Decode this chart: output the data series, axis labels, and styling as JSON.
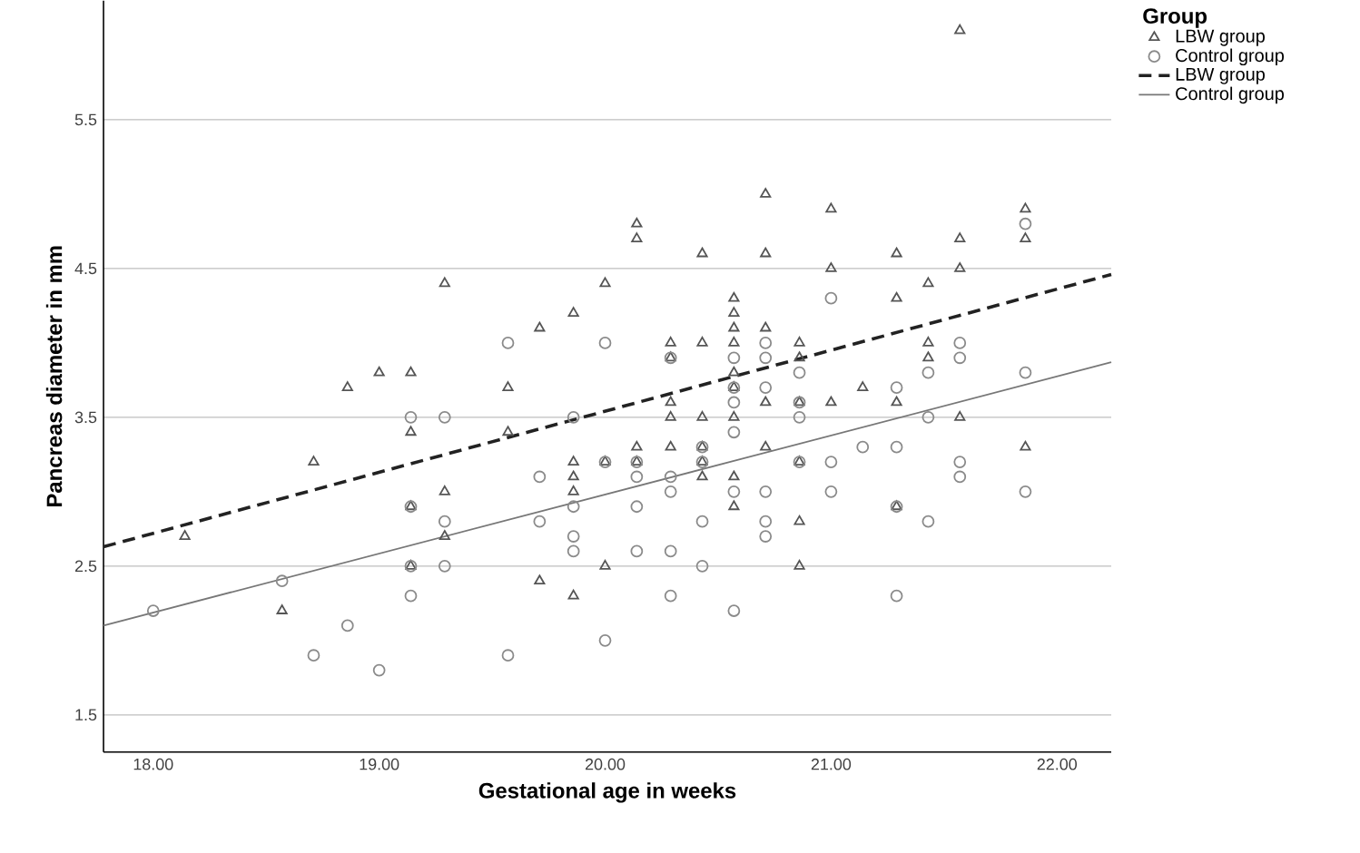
{
  "chart_data": {
    "type": "scatter",
    "xlabel": "Gestational age in weeks",
    "ylabel": "Pancreas diameter in mm",
    "legend_title": "Group",
    "xlim": [
      17.78,
      22.24
    ],
    "ylim": [
      1.25,
      6.3
    ],
    "xticks": [
      {
        "value": 18,
        "label": "18.00"
      },
      {
        "value": 19,
        "label": "19.00"
      },
      {
        "value": 20,
        "label": "20.00"
      },
      {
        "value": 21,
        "label": "21.00"
      },
      {
        "value": 22,
        "label": "22.00"
      }
    ],
    "yticks": [
      1.5,
      2.5,
      3.5,
      4.5,
      5.5
    ],
    "grid": "y",
    "legend": "right",
    "series": [
      {
        "name": "LBW group",
        "marker": "triangle",
        "color": "#555555",
        "x": [
          18.14,
          18.57,
          18.71,
          18.86,
          19.0,
          19.14,
          19.14,
          19.14,
          19.14,
          19.29,
          19.29,
          19.29,
          19.57,
          19.57,
          19.71,
          19.71,
          19.86,
          19.86,
          19.86,
          19.86,
          19.86,
          20.0,
          20.0,
          20.0,
          20.14,
          20.14,
          20.14,
          20.14,
          20.29,
          20.29,
          20.29,
          20.29,
          20.29,
          20.43,
          20.43,
          20.43,
          20.43,
          20.43,
          20.43,
          20.57,
          20.57,
          20.57,
          20.57,
          20.57,
          20.57,
          20.57,
          20.57,
          20.57,
          20.71,
          20.71,
          20.71,
          20.71,
          20.71,
          20.86,
          20.86,
          20.86,
          20.86,
          20.86,
          20.86,
          21.0,
          21.0,
          21.0,
          21.14,
          21.29,
          21.29,
          21.29,
          21.29,
          21.43,
          21.43,
          21.43,
          21.57,
          21.57,
          21.57,
          21.57,
          21.86,
          21.86,
          21.86
        ],
        "values": [
          2.7,
          2.2,
          3.2,
          3.7,
          3.8,
          3.8,
          3.4,
          2.9,
          2.5,
          4.4,
          3.0,
          2.7,
          3.7,
          3.4,
          4.1,
          2.4,
          4.2,
          3.2,
          3.1,
          3.0,
          2.3,
          4.4,
          3.2,
          2.5,
          4.8,
          4.7,
          3.3,
          3.2,
          4.0,
          3.9,
          3.6,
          3.5,
          3.3,
          4.6,
          4.0,
          3.5,
          3.3,
          3.2,
          3.1,
          4.3,
          4.2,
          4.1,
          4.0,
          3.8,
          3.7,
          3.5,
          3.1,
          2.9,
          5.0,
          4.6,
          4.1,
          3.6,
          3.3,
          4.0,
          3.9,
          3.6,
          3.2,
          2.8,
          2.5,
          4.9,
          4.5,
          3.6,
          3.7,
          4.6,
          4.3,
          3.6,
          2.9,
          4.4,
          4.0,
          3.9,
          6.1,
          4.7,
          4.5,
          3.5,
          4.9,
          4.7,
          3.3
        ]
      },
      {
        "name": "Control group",
        "marker": "circle",
        "color": "#8a8a8a",
        "x": [
          18.0,
          18.57,
          18.71,
          18.86,
          19.0,
          19.14,
          19.14,
          19.14,
          19.14,
          19.29,
          19.29,
          19.29,
          19.57,
          19.57,
          19.71,
          19.71,
          19.86,
          19.86,
          19.86,
          19.86,
          20.0,
          20.0,
          20.0,
          20.14,
          20.14,
          20.14,
          20.14,
          20.29,
          20.29,
          20.29,
          20.29,
          20.29,
          20.43,
          20.43,
          20.43,
          20.43,
          20.57,
          20.57,
          20.57,
          20.57,
          20.57,
          20.57,
          20.71,
          20.71,
          20.71,
          20.71,
          20.71,
          20.71,
          20.86,
          20.86,
          20.86,
          20.86,
          21.0,
          21.0,
          21.0,
          21.14,
          21.29,
          21.29,
          21.29,
          21.29,
          21.43,
          21.43,
          21.43,
          21.57,
          21.57,
          21.57,
          21.57,
          21.86,
          21.86,
          21.86
        ],
        "values": [
          2.2,
          2.4,
          1.9,
          2.1,
          1.8,
          3.5,
          2.9,
          2.5,
          2.3,
          3.5,
          2.8,
          2.5,
          4.0,
          1.9,
          3.1,
          2.8,
          3.5,
          2.9,
          2.7,
          2.6,
          4.0,
          3.2,
          2.0,
          3.2,
          3.1,
          2.9,
          2.6,
          3.9,
          3.1,
          3.0,
          2.6,
          2.3,
          3.3,
          3.2,
          2.8,
          2.5,
          3.9,
          3.7,
          3.6,
          3.4,
          3.0,
          2.2,
          4.0,
          3.9,
          3.7,
          3.0,
          2.8,
          2.7,
          3.8,
          3.6,
          3.5,
          3.2,
          4.3,
          3.2,
          3.0,
          3.3,
          3.7,
          3.3,
          2.9,
          2.3,
          3.8,
          3.5,
          2.8,
          4.0,
          3.9,
          3.2,
          3.1,
          4.8,
          3.8,
          3.0
        ]
      },
      {
        "name": "LBW group",
        "type": "line",
        "line_style": "dashed",
        "color": "#222222",
        "x": [
          17.78,
          22.24
        ],
        "values": [
          2.63,
          4.46
        ]
      },
      {
        "name": "Control group",
        "type": "line",
        "line_style": "solid",
        "color": "#777777",
        "x": [
          17.78,
          22.24
        ],
        "values": [
          2.1,
          3.87
        ]
      }
    ]
  }
}
